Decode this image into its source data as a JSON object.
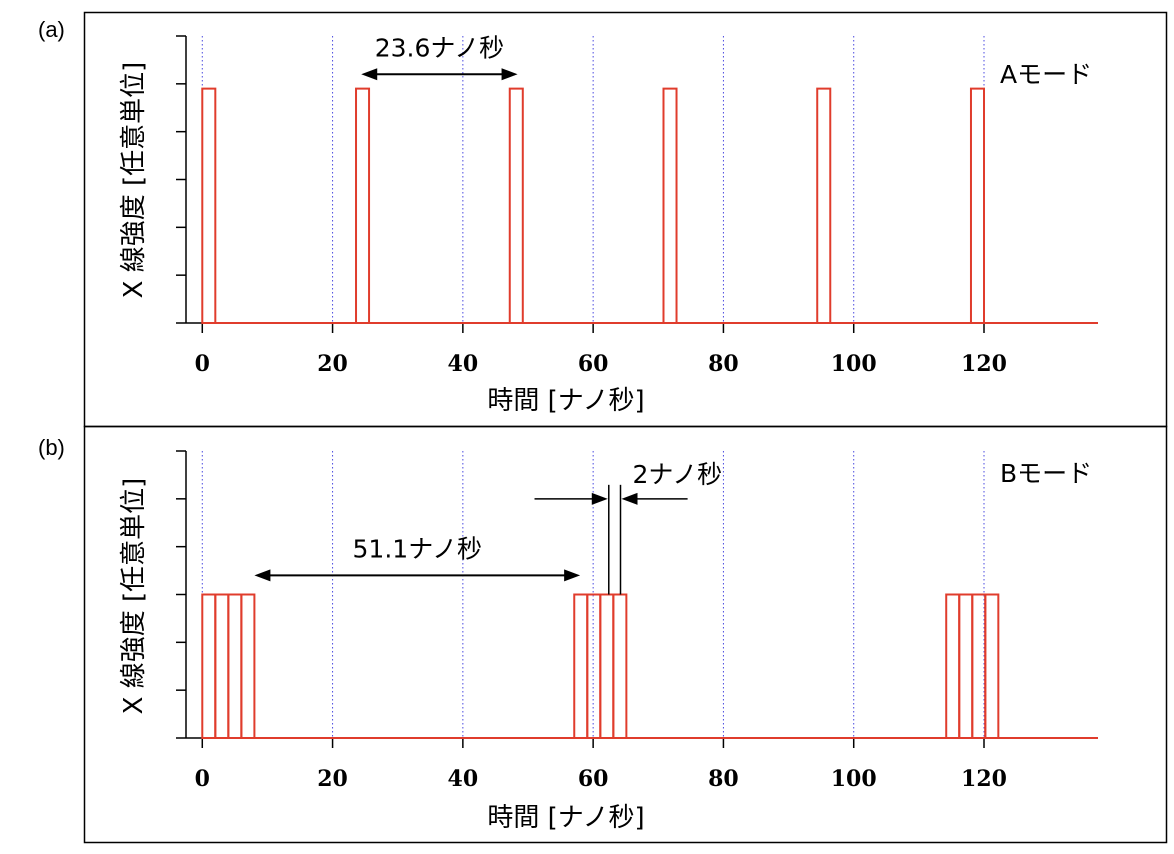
{
  "chart_data": [
    {
      "type": "line",
      "panel_label": "(a)",
      "mode_label": "Aモード",
      "xlabel": "時間 [ナノ秒]",
      "ylabel": "X 線強度 [任意単位]",
      "xlim": [
        -2.5,
        137.5
      ],
      "ylim": [
        0,
        6
      ],
      "x_ticks": [
        0,
        20,
        40,
        60,
        80,
        100,
        120
      ],
      "x_tick_labels": [
        "0",
        "20",
        "40",
        "60",
        "80",
        "100",
        "120"
      ],
      "y_ticks": [
        0,
        1,
        2,
        3,
        4,
        5,
        6
      ],
      "vertical_gridlines": [
        0,
        20,
        40,
        60,
        80,
        100,
        120
      ],
      "series": [
        {
          "pulse_starts": [
            0,
            23.6,
            47.2,
            70.8,
            94.4,
            118.0
          ],
          "pulse_width": 2,
          "pulse_height": 4.9,
          "color": "#e03c2c"
        }
      ],
      "annotations": [
        {
          "text": "23.6ナノ秒",
          "type": "double-arrow",
          "x_from": 24.4,
          "x_to": 48.4,
          "y": 5.2
        }
      ]
    },
    {
      "type": "line",
      "panel_label": "(b)",
      "mode_label": "Bモード",
      "xlabel": "時間 [ナノ秒]",
      "ylabel": "X 線強度 [任意単位]",
      "xlim": [
        -2.5,
        137.5
      ],
      "ylim": [
        0,
        6
      ],
      "x_ticks": [
        0,
        20,
        40,
        60,
        80,
        100,
        120
      ],
      "x_tick_labels": [
        "0",
        "20",
        "40",
        "60",
        "80",
        "100",
        "120"
      ],
      "y_ticks": [
        0,
        1,
        2,
        3,
        4,
        5,
        6
      ],
      "vertical_gridlines": [
        0,
        20,
        40,
        60,
        80,
        100,
        120
      ],
      "series": [
        {
          "pulse_starts": [
            0,
            2,
            4,
            6,
            57.1,
            59.1,
            61.1,
            63.1,
            114.2,
            116.2,
            118.2,
            120.2
          ],
          "pulse_width": 2,
          "pulse_height": 3.0,
          "color": "#e03c2c"
        }
      ],
      "annotations": [
        {
          "text": "51.1ナノ秒",
          "type": "double-arrow",
          "x_from": 8,
          "x_to": 58,
          "y": 3.4
        },
        {
          "text": "2ナノ秒",
          "type": "inward-arrows",
          "x_left": 62.4,
          "x_right": 64.2,
          "y": 5.0,
          "left_tail": 51,
          "right_tail": 74.5
        }
      ]
    }
  ]
}
